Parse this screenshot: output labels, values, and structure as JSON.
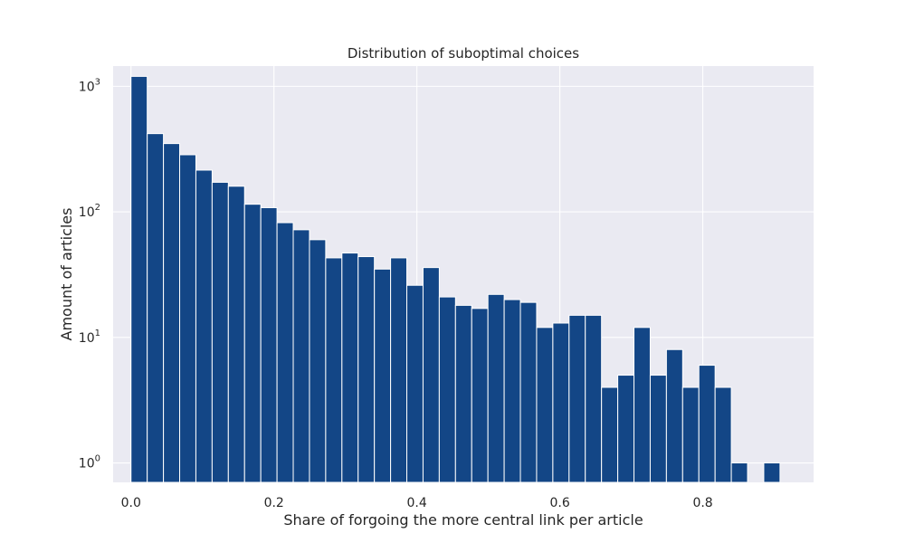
{
  "chart_data": {
    "type": "bar",
    "title": "Distribution of suboptimal choices",
    "xlabel": "Share of forgoing the more central link per article",
    "ylabel": "Amount of articles",
    "y_scale": "log",
    "xlim": [
      -0.025,
      0.955
    ],
    "ylim": [
      0.7,
      1450
    ],
    "grid": true,
    "style": "seaborn-darkgrid",
    "bar_color": "#134686",
    "background_color": "#EAEAF2",
    "bin_start": 0.0,
    "bin_width": 0.0227,
    "values": [
      1200,
      420,
      350,
      285,
      215,
      172,
      160,
      115,
      108,
      82,
      72,
      60,
      43,
      47,
      44,
      35,
      43,
      26,
      36,
      21,
      18,
      17,
      22,
      20,
      19,
      12,
      13,
      15,
      15,
      4,
      5,
      12,
      5,
      8,
      4,
      6,
      4,
      1,
      0,
      1
    ],
    "x_ticks": [
      {
        "value": 0.0,
        "label": "0.0"
      },
      {
        "value": 0.2,
        "label": "0.2"
      },
      {
        "value": 0.4,
        "label": "0.4"
      },
      {
        "value": 0.6,
        "label": "0.6"
      },
      {
        "value": 0.8,
        "label": "0.8"
      }
    ],
    "y_ticks": [
      {
        "value": 1,
        "base": "10",
        "exp": "0"
      },
      {
        "value": 10,
        "base": "10",
        "exp": "1"
      },
      {
        "value": 100,
        "base": "10",
        "exp": "2"
      },
      {
        "value": 1000,
        "base": "10",
        "exp": "3"
      }
    ]
  }
}
